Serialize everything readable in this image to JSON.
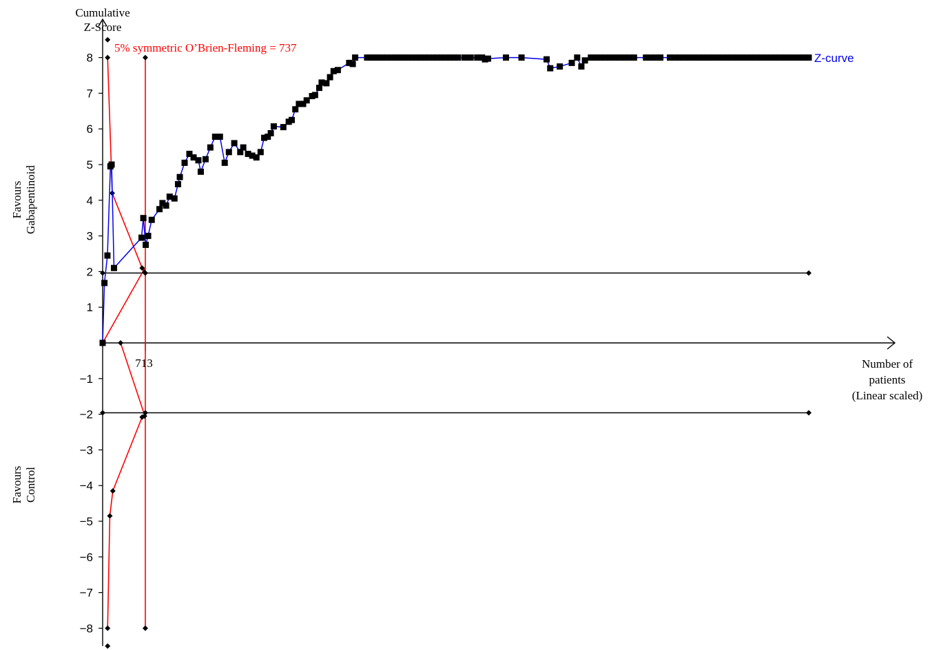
{
  "chart_data": {
    "type": "line",
    "title": "",
    "ylabel_lines": [
      "Cumulative",
      "Z-Score"
    ],
    "xlabel_lines": [
      "Number of",
      "patients",
      "(Linear scaled)"
    ],
    "favours_top_lines": [
      "Favours",
      "Gabapentinoid"
    ],
    "favours_bottom_lines": [
      "Favours",
      "Control"
    ],
    "ylim": [
      -8,
      8
    ],
    "y_ticks": [
      8,
      7,
      6,
      5,
      4,
      3,
      2,
      1,
      -1,
      -2,
      -3,
      -4,
      -5,
      -6,
      -7,
      -8
    ],
    "y_tick_labels": [
      "8",
      "7",
      "6",
      "5",
      "4",
      "3",
      "2",
      "1",
      "−1",
      "−2",
      "−3",
      "−4",
      "−5",
      "−6",
      "−7",
      "−8"
    ],
    "x_marker_label": "713",
    "x_marker_value": 713,
    "information_size": 737,
    "boundary_label": "5% symmetric O’Brien-Fleming = 737",
    "curve_label": "Z-curve",
    "conventional_bounds": {
      "upper": [
        [
          0,
          1.96
        ],
        [
          11800,
          1.96
        ]
      ],
      "lower": [
        [
          0,
          -1.96
        ],
        [
          11800,
          -1.96
        ]
      ]
    },
    "obf_upper": [
      [
        83,
        8.0
      ],
      [
        160,
        4.2
      ],
      [
        660,
        2.1
      ],
      [
        700,
        1.98
      ],
      [
        713,
        1.96
      ]
    ],
    "obf_lower": [
      [
        83,
        -8.0
      ],
      [
        120,
        -4.85
      ],
      [
        170,
        -4.15
      ],
      [
        660,
        -2.08
      ],
      [
        700,
        -2.05
      ],
      [
        713,
        -1.96
      ]
    ],
    "futility_vertical": [
      [
        713,
        8
      ],
      [
        713,
        -8
      ]
    ],
    "futility_lines": [
      [
        [
          0,
          0
        ],
        [
          700,
          2.08
        ]
      ],
      [
        [
          300,
          0
        ],
        [
          700,
          -2.02
        ]
      ]
    ],
    "small_diamonds": [
      [
        83,
        8.5
      ],
      [
        83,
        -8.5
      ],
      [
        300,
        0
      ],
      [
        11800,
        1.96
      ],
      [
        11800,
        -1.96
      ],
      [
        0,
        1.96
      ],
      [
        0,
        -1.96
      ]
    ],
    "z_curve": [
      [
        0,
        0
      ],
      [
        30,
        1.68
      ],
      [
        80,
        2.45
      ],
      [
        130,
        4.95
      ],
      [
        150,
        5.0
      ],
      [
        190,
        2.1
      ],
      [
        650,
        2.95
      ],
      [
        680,
        3.5
      ],
      [
        720,
        2.75
      ],
      [
        760,
        3.0
      ],
      [
        820,
        3.45
      ],
      [
        950,
        3.75
      ],
      [
        1000,
        3.92
      ],
      [
        1060,
        3.85
      ],
      [
        1120,
        4.1
      ],
      [
        1200,
        4.05
      ],
      [
        1260,
        4.45
      ],
      [
        1290,
        4.65
      ],
      [
        1370,
        5.05
      ],
      [
        1450,
        5.3
      ],
      [
        1520,
        5.2
      ],
      [
        1600,
        5.12
      ],
      [
        1640,
        4.8
      ],
      [
        1720,
        5.15
      ],
      [
        1800,
        5.48
      ],
      [
        1880,
        5.78
      ],
      [
        1960,
        5.78
      ],
      [
        2040,
        5.05
      ],
      [
        2110,
        5.35
      ],
      [
        2200,
        5.6
      ],
      [
        2300,
        5.35
      ],
      [
        2350,
        5.48
      ],
      [
        2430,
        5.3
      ],
      [
        2500,
        5.25
      ],
      [
        2570,
        5.2
      ],
      [
        2640,
        5.35
      ],
      [
        2700,
        5.75
      ],
      [
        2760,
        5.78
      ],
      [
        2810,
        5.88
      ],
      [
        2860,
        6.07
      ],
      [
        3020,
        6.05
      ],
      [
        3110,
        6.2
      ],
      [
        3160,
        6.25
      ],
      [
        3220,
        6.55
      ],
      [
        3280,
        6.7
      ],
      [
        3350,
        6.7
      ],
      [
        3410,
        6.8
      ],
      [
        3500,
        6.92
      ],
      [
        3550,
        6.95
      ],
      [
        3620,
        7.15
      ],
      [
        3660,
        7.3
      ],
      [
        3740,
        7.28
      ],
      [
        3800,
        7.45
      ],
      [
        3860,
        7.62
      ],
      [
        3930,
        7.65
      ],
      [
        4120,
        7.85
      ],
      [
        4180,
        7.82
      ],
      [
        4220,
        8
      ],
      [
        4420,
        8
      ],
      [
        4480,
        8
      ],
      [
        4550,
        8
      ],
      [
        4610,
        8
      ],
      [
        4680,
        8
      ],
      [
        4750,
        8
      ],
      [
        4830,
        8
      ],
      [
        4900,
        8
      ],
      [
        4960,
        8
      ],
      [
        5040,
        8
      ],
      [
        5100,
        8
      ],
      [
        5170,
        8
      ],
      [
        5240,
        8
      ],
      [
        5310,
        8
      ],
      [
        5380,
        8
      ],
      [
        5450,
        8
      ],
      [
        5520,
        8
      ],
      [
        5590,
        8
      ],
      [
        5660,
        8
      ],
      [
        5730,
        8
      ],
      [
        5800,
        8
      ],
      [
        5870,
        8
      ],
      [
        5940,
        8
      ],
      [
        6050,
        8
      ],
      [
        6150,
        8
      ],
      [
        6260,
        8
      ],
      [
        6340,
        8
      ],
      [
        6390,
        7.95
      ],
      [
        6440,
        7.97
      ],
      [
        6740,
        8
      ],
      [
        7000,
        8
      ],
      [
        7420,
        7.95
      ],
      [
        7480,
        7.7
      ],
      [
        7640,
        7.75
      ],
      [
        7840,
        7.85
      ],
      [
        7930,
        8
      ],
      [
        8000,
        7.75
      ],
      [
        8060,
        7.92
      ],
      [
        8160,
        8
      ],
      [
        8240,
        8
      ],
      [
        8320,
        8
      ],
      [
        8400,
        8
      ],
      [
        8480,
        8
      ],
      [
        8560,
        8
      ],
      [
        8640,
        8
      ],
      [
        8720,
        8
      ],
      [
        8800,
        8
      ],
      [
        8880,
        8
      ],
      [
        9080,
        8
      ],
      [
        9160,
        8
      ],
      [
        9240,
        8
      ],
      [
        9320,
        8
      ],
      [
        9480,
        8
      ],
      [
        9560,
        8
      ],
      [
        9640,
        8
      ],
      [
        9720,
        8
      ],
      [
        9800,
        8
      ],
      [
        9880,
        8
      ],
      [
        9960,
        8
      ],
      [
        10040,
        8
      ],
      [
        10120,
        8
      ],
      [
        10200,
        8
      ],
      [
        10280,
        8
      ],
      [
        10360,
        8
      ],
      [
        10440,
        8
      ],
      [
        10520,
        8
      ],
      [
        10600,
        8
      ],
      [
        10680,
        8
      ],
      [
        10760,
        8
      ],
      [
        10840,
        8
      ],
      [
        10920,
        8
      ],
      [
        11000,
        8
      ],
      [
        11080,
        8
      ],
      [
        11160,
        8
      ],
      [
        11240,
        8
      ],
      [
        11320,
        8
      ],
      [
        11400,
        8
      ],
      [
        11480,
        8
      ],
      [
        11560,
        8
      ],
      [
        11640,
        8
      ],
      [
        11720,
        8
      ],
      [
        11800,
        8
      ]
    ],
    "grid": false,
    "colors": {
      "z_curve": "#0000ee",
      "boundary": "#ff0000",
      "axis": "#000000",
      "marker": "#000000"
    }
  }
}
